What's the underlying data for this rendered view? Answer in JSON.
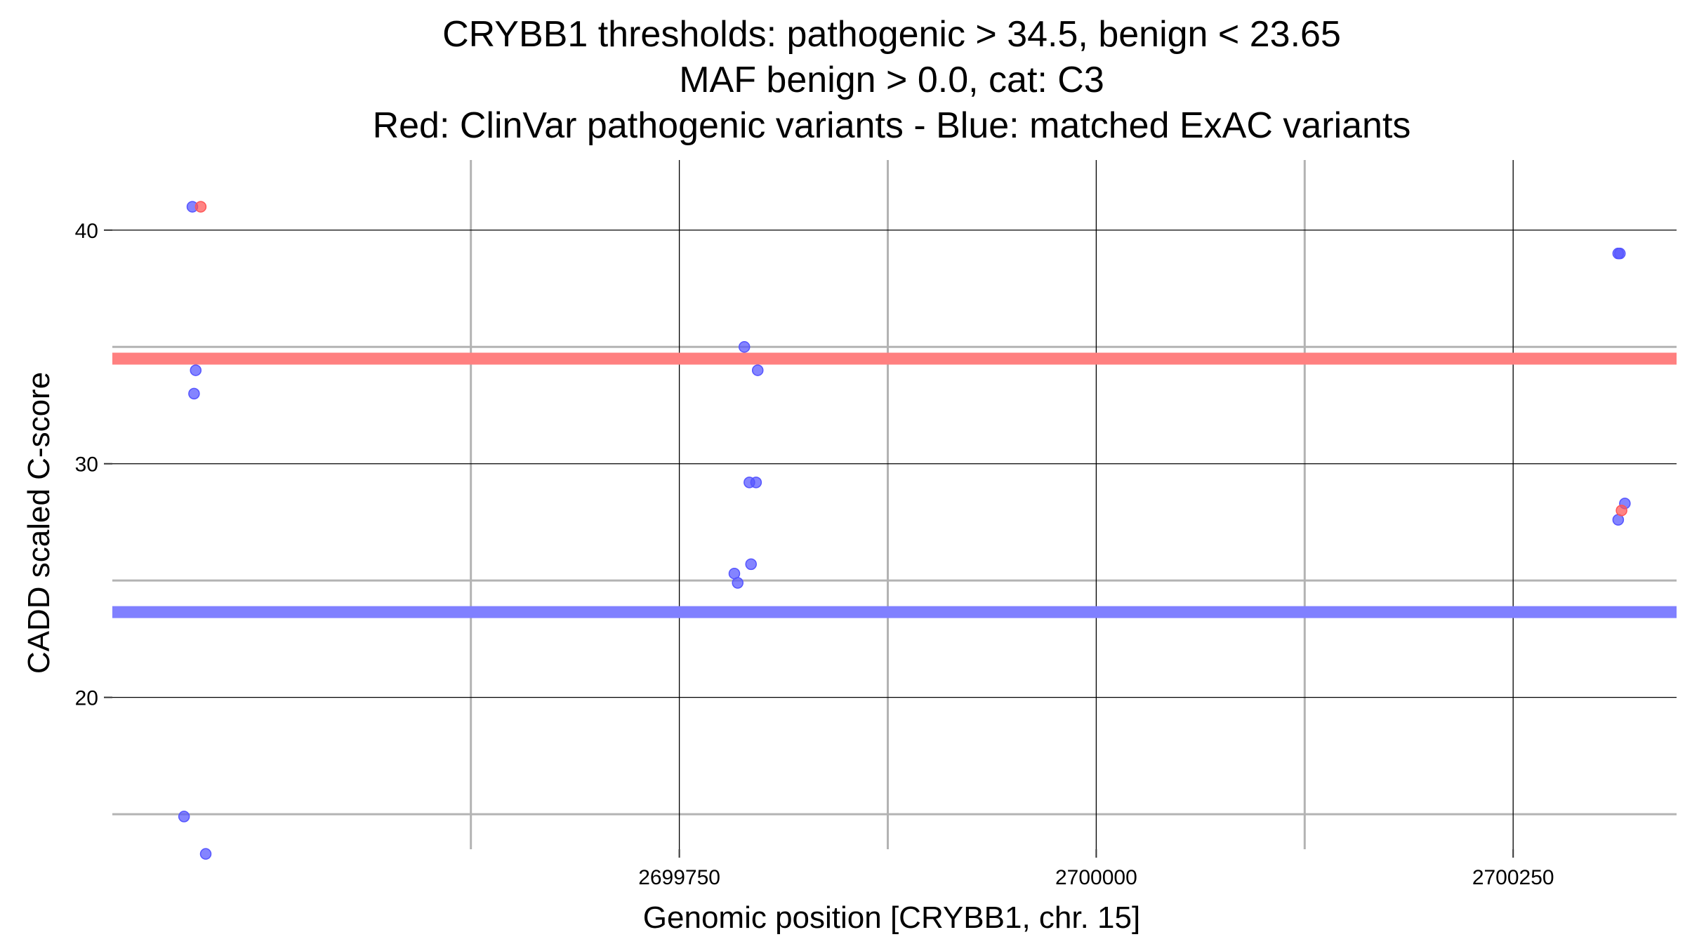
{
  "chart_data": {
    "type": "scatter",
    "title_lines": [
      "CRYBB1 thresholds: pathogenic > 34.5, benign < 23.65",
      "MAF benign > 0.0, cat: C3",
      "Red: ClinVar pathogenic variants - Blue: matched ExAC variants"
    ],
    "xlabel": "Genomic position [CRYBB1, chr. 15]",
    "ylabel": "CADD scaled C-score",
    "xlim": [
      2699410,
      2700348
    ],
    "ylim": [
      13.5,
      43.0
    ],
    "x_major_ticks": [
      2699750,
      2700000,
      2700250
    ],
    "x_tick_labels": [
      "2699750",
      "2700000",
      "2700250"
    ],
    "x_minor_ticks": [
      2699625,
      2699875,
      2700125,
      2700375
    ],
    "y_major_ticks": [
      20,
      30,
      40
    ],
    "y_tick_labels": [
      "20",
      "30",
      "40"
    ],
    "y_minor_ticks": [
      15,
      25,
      35
    ],
    "grid": true,
    "thresholds": [
      {
        "name": "pathogenic",
        "value": 34.5,
        "color": "#ff8080"
      },
      {
        "name": "benign",
        "value": 23.65,
        "color": "#8080ff"
      }
    ],
    "series": [
      {
        "color": "#5555ff",
        "points": [
          {
            "x": 2699458,
            "y": 41.0
          },
          {
            "x": 2699460,
            "y": 34.0
          },
          {
            "x": 2699459,
            "y": 33.0
          },
          {
            "x": 2699453,
            "y": 14.9
          },
          {
            "x": 2699466,
            "y": 13.3
          },
          {
            "x": 2699789,
            "y": 35.0
          },
          {
            "x": 2699797,
            "y": 34.0
          },
          {
            "x": 2699792,
            "y": 29.2
          },
          {
            "x": 2699796,
            "y": 29.2
          },
          {
            "x": 2699793,
            "y": 25.7
          },
          {
            "x": 2699783,
            "y": 25.3
          },
          {
            "x": 2699785,
            "y": 24.9
          },
          {
            "x": 2700313,
            "y": 39.0
          },
          {
            "x": 2700314,
            "y": 39.0
          },
          {
            "x": 2700317,
            "y": 28.3
          },
          {
            "x": 2700313,
            "y": 27.6
          }
        ]
      },
      {
        "color": "#ff5555",
        "points": [
          {
            "x": 2699463,
            "y": 41.0
          },
          {
            "x": 2700315,
            "y": 28.0
          }
        ]
      }
    ]
  }
}
